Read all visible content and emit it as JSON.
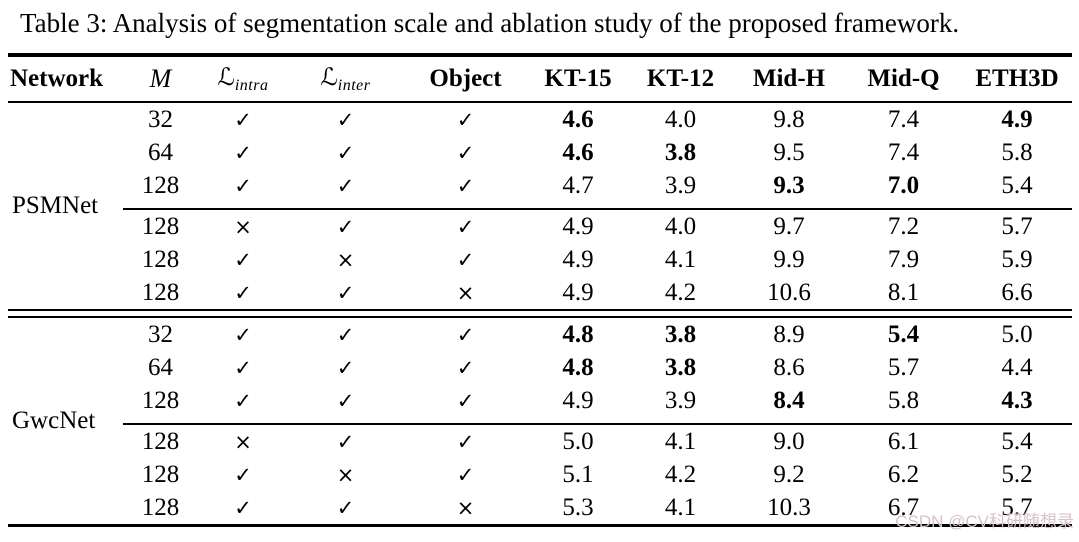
{
  "caption": "Table 3: Analysis of segmentation scale and ablation study of the proposed framework.",
  "watermark": {
    "text": "CSDN @CV科研随想录",
    "color": "#d8c2ca"
  },
  "colors": {
    "text": "#000000",
    "background": "#ffffff",
    "rule": "#000000"
  },
  "table": {
    "check_glyph": "✓",
    "cross_glyph": "×",
    "headers": [
      {
        "label": "Network",
        "style": "bold-left",
        "key": "network"
      },
      {
        "label": "M",
        "style": "math-italic",
        "key": "m"
      },
      {
        "label": "ℒ",
        "sub": "intra",
        "style": "math-script",
        "key": "l-intra"
      },
      {
        "label": "ℒ",
        "sub": "inter",
        "style": "math-script",
        "key": "l-inter"
      },
      {
        "label": "Object",
        "style": "bold",
        "key": "object"
      },
      {
        "label": "KT-15",
        "style": "bold",
        "key": "kt-15"
      },
      {
        "label": "KT-12",
        "style": "bold",
        "key": "kt-12"
      },
      {
        "label": "Mid-H",
        "style": "bold",
        "key": "mid-h"
      },
      {
        "label": "Mid-Q",
        "style": "bold",
        "key": "mid-q"
      },
      {
        "label": "ETH3D",
        "style": "bold",
        "key": "eth3d"
      }
    ],
    "column_keys": [
      "m",
      "l-intra",
      "l-inter",
      "object",
      "kt-15",
      "kt-12",
      "mid-h",
      "mid-q",
      "eth3d"
    ],
    "groups": [
      {
        "network": "PSMNet",
        "rows": [
          {
            "cells": [
              "32",
              "✓",
              "✓",
              "✓",
              "4.6",
              "4.0",
              "9.8",
              "7.4",
              "4.9"
            ],
            "bold": [
              4,
              8
            ],
            "rule_after": false
          },
          {
            "cells": [
              "64",
              "✓",
              "✓",
              "✓",
              "4.6",
              "3.8",
              "9.5",
              "7.4",
              "5.8"
            ],
            "bold": [
              4,
              5
            ],
            "rule_after": false
          },
          {
            "cells": [
              "128",
              "✓",
              "✓",
              "✓",
              "4.7",
              "3.9",
              "9.3",
              "7.0",
              "5.4"
            ],
            "bold": [
              6,
              7
            ],
            "rule_after": true
          },
          {
            "cells": [
              "128",
              "×",
              "✓",
              "✓",
              "4.9",
              "4.0",
              "9.7",
              "7.2",
              "5.7"
            ],
            "bold": [],
            "rule_after": false
          },
          {
            "cells": [
              "128",
              "✓",
              "×",
              "✓",
              "4.9",
              "4.1",
              "9.9",
              "7.9",
              "5.9"
            ],
            "bold": [],
            "rule_after": false
          },
          {
            "cells": [
              "128",
              "✓",
              "✓",
              "×",
              "4.9",
              "4.2",
              "10.6",
              "8.1",
              "6.6"
            ],
            "bold": [],
            "rule_after": false
          }
        ]
      },
      {
        "network": "GwcNet",
        "rows": [
          {
            "cells": [
              "32",
              "✓",
              "✓",
              "✓",
              "4.8",
              "3.8",
              "8.9",
              "5.4",
              "5.0"
            ],
            "bold": [
              4,
              5,
              7
            ],
            "rule_after": false
          },
          {
            "cells": [
              "64",
              "✓",
              "✓",
              "✓",
              "4.8",
              "3.8",
              "8.6",
              "5.7",
              "4.4"
            ],
            "bold": [
              4,
              5
            ],
            "rule_after": false
          },
          {
            "cells": [
              "128",
              "✓",
              "✓",
              "✓",
              "4.9",
              "3.9",
              "8.4",
              "5.8",
              "4.3"
            ],
            "bold": [
              6,
              8
            ],
            "rule_after": true
          },
          {
            "cells": [
              "128",
              "×",
              "✓",
              "✓",
              "5.0",
              "4.1",
              "9.0",
              "6.1",
              "5.4"
            ],
            "bold": [],
            "rule_after": false
          },
          {
            "cells": [
              "128",
              "✓",
              "×",
              "✓",
              "5.1",
              "4.2",
              "9.2",
              "6.2",
              "5.2"
            ],
            "bold": [],
            "rule_after": false
          },
          {
            "cells": [
              "128",
              "✓",
              "✓",
              "×",
              "5.3",
              "4.1",
              "10.3",
              "6.7",
              "5.7"
            ],
            "bold": [],
            "rule_after": false
          }
        ]
      }
    ]
  }
}
